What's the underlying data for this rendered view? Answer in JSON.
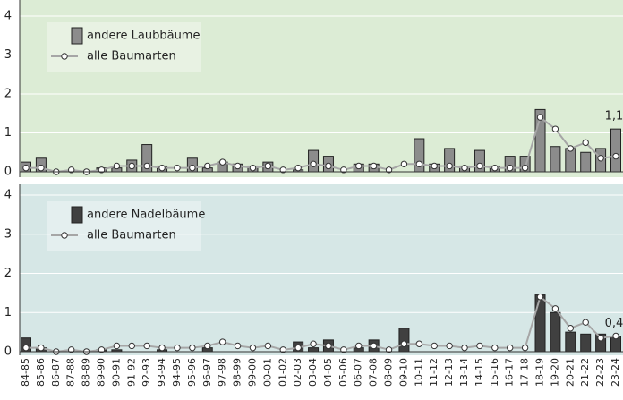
{
  "chart_data": [
    {
      "type": "bar",
      "background": "#dcecd5",
      "ylim": [
        0,
        4
      ],
      "yticks": [
        0,
        1,
        2,
        3,
        4
      ],
      "grid": true,
      "legend": "upper left",
      "series": [
        {
          "name": "andere Laubbäume",
          "color": "#8c8c8c",
          "values": [
            0.25,
            0.35,
            0,
            0,
            0,
            0.1,
            0.1,
            0.3,
            0.7,
            0.15,
            0,
            0.35,
            0.1,
            0.25,
            0.2,
            0.15,
            0.25,
            0,
            0.05,
            0.55,
            0.4,
            0,
            0.2,
            0.2,
            0,
            0,
            0.85,
            0.2,
            0.6,
            0.15,
            0.55,
            0.15,
            0.4,
            0.4,
            1.6,
            0.65,
            0.6,
            0.5,
            0.6,
            1.1
          ],
          "value_labels": [
            null,
            null,
            null,
            null,
            null,
            null,
            null,
            null,
            null,
            null,
            null,
            null,
            null,
            null,
            null,
            null,
            null,
            null,
            null,
            null,
            null,
            null,
            null,
            null,
            null,
            null,
            null,
            null,
            null,
            null,
            null,
            null,
            null,
            null,
            null,
            null,
            null,
            null,
            null,
            "1,1"
          ]
        },
        {
          "name": "alle Baumarten",
          "type": "line",
          "color": "#a6a6a6",
          "values": [
            0.1,
            0.1,
            0,
            0.05,
            0,
            0.05,
            0.15,
            0.15,
            0.15,
            0.1,
            0.1,
            0.1,
            0.15,
            0.25,
            0.15,
            0.1,
            0.15,
            0.05,
            0.1,
            0.2,
            0.15,
            0.05,
            0.15,
            0.15,
            0.05,
            0.2,
            0.2,
            0.15,
            0.15,
            0.1,
            0.15,
            0.1,
            0.1,
            0.1,
            1.4,
            1.1,
            0.6,
            0.75,
            0.35,
            0.4
          ]
        }
      ]
    },
    {
      "type": "bar",
      "background": "#d6e7e6",
      "ylim": [
        0,
        4
      ],
      "yticks": [
        0,
        1,
        2,
        3,
        4
      ],
      "grid": true,
      "legend": "upper left",
      "categories": [
        "84-85",
        "85-86",
        "86-87",
        "87-88",
        "88-89",
        "89-90",
        "90-91",
        "91-92",
        "92-93",
        "93-94",
        "94-95",
        "95-96",
        "96-97",
        "97-98",
        "98-99",
        "99-00",
        "00-01",
        "01-02",
        "02-03",
        "03-04",
        "04-05",
        "05-06",
        "06-07",
        "07-08",
        "08-09",
        "09-10",
        "10-11",
        "11-12",
        "12-13",
        "13-14",
        "14-15",
        "15-16",
        "16-17",
        "17-18",
        "18-19",
        "19-20",
        "20-21",
        "21-22",
        "22-23",
        "23-24"
      ],
      "series": [
        {
          "name": "andere Nadelbäume",
          "color": "#404040",
          "values": [
            0.35,
            0.1,
            0,
            0,
            0,
            0.05,
            0.05,
            0,
            0,
            0.05,
            0,
            0,
            0.1,
            0,
            0,
            0,
            0,
            0,
            0.25,
            0.1,
            0.3,
            0,
            0.1,
            0.3,
            0,
            0.6,
            0,
            0,
            0,
            0,
            0,
            0,
            0,
            0,
            1.45,
            1.0,
            0.5,
            0.45,
            0.45,
            0.4
          ],
          "value_labels": [
            null,
            null,
            null,
            null,
            null,
            null,
            null,
            null,
            null,
            null,
            null,
            null,
            null,
            null,
            null,
            null,
            null,
            null,
            null,
            null,
            null,
            null,
            null,
            null,
            null,
            null,
            null,
            null,
            null,
            null,
            null,
            null,
            null,
            null,
            null,
            null,
            null,
            null,
            null,
            "0,4"
          ]
        },
        {
          "name": "alle Baumarten",
          "type": "line",
          "color": "#a6a6a6",
          "values": [
            0.1,
            0.1,
            0,
            0.05,
            0,
            0.05,
            0.15,
            0.15,
            0.15,
            0.1,
            0.1,
            0.1,
            0.15,
            0.25,
            0.15,
            0.1,
            0.15,
            0.05,
            0.1,
            0.2,
            0.15,
            0.05,
            0.15,
            0.15,
            0.05,
            0.2,
            0.2,
            0.15,
            0.15,
            0.1,
            0.15,
            0.1,
            0.1,
            0.1,
            1.4,
            1.1,
            0.6,
            0.75,
            0.35,
            0.4
          ]
        }
      ]
    }
  ]
}
